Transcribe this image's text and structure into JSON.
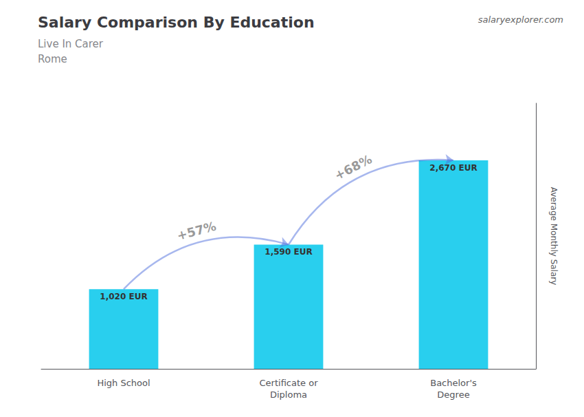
{
  "chart_data": {
    "type": "bar",
    "title": "Salary Comparison By Education",
    "subtitle": [
      "Live In Carer",
      "Rome"
    ],
    "ylabel": "Average Monthly Salary",
    "categories": [
      "High School",
      "Certificate or\nDiploma",
      "Bachelor's\nDegree"
    ],
    "values": [
      1020,
      1590,
      2670
    ],
    "value_labels": [
      "1,020 EUR",
      "1,590 EUR",
      "2,670 EUR"
    ],
    "data_labels": true,
    "color": "#29cfee",
    "ylim": [
      0,
      3400
    ],
    "tick_labels": "x",
    "grid": false,
    "annotations": [
      "+57%",
      "+68%",
      "salaryexplorer.com"
    ]
  }
}
